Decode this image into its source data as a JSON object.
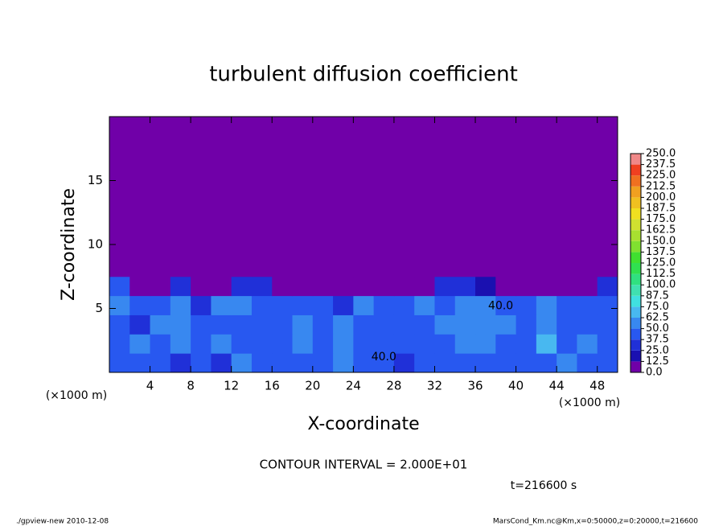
{
  "chart_data": {
    "type": "contour",
    "title": "turbulent diffusion coefficient",
    "x_label": "X-coordinate",
    "y_label": "Z-coordinate",
    "x_unit": "(×1000 m)",
    "y_unit": "(×1000 m)",
    "xlim": [
      0,
      50
    ],
    "ylim": [
      0,
      20
    ],
    "xticks": [
      4,
      8,
      12,
      16,
      20,
      24,
      28,
      32,
      36,
      40,
      44,
      48
    ],
    "yticks": [
      5,
      10,
      15
    ],
    "x_edges": [
      0,
      2,
      4,
      6,
      8,
      10,
      12,
      14,
      16,
      18,
      20,
      22,
      24,
      26,
      28,
      30,
      32,
      34,
      36,
      38,
      40,
      42,
      44,
      46,
      48,
      50
    ],
    "z_edges": [
      0,
      1.5,
      3,
      4.5,
      6,
      7.5,
      20
    ],
    "values": [
      [
        40,
        45,
        40,
        35,
        45,
        30,
        60,
        45,
        40,
        45,
        40,
        60,
        40,
        40,
        35,
        40,
        40,
        45,
        45,
        40,
        45,
        40,
        50,
        45,
        40
      ],
      [
        40,
        50,
        45,
        60,
        40,
        50,
        45,
        40,
        40,
        60,
        45,
        55,
        45,
        40,
        45,
        45,
        45,
        50,
        55,
        45,
        40,
        70,
        40,
        50,
        45
      ],
      [
        45,
        35,
        50,
        55,
        40,
        45,
        45,
        40,
        45,
        55,
        40,
        50,
        45,
        40,
        45,
        45,
        50,
        60,
        55,
        50,
        45,
        60,
        45,
        40,
        45
      ],
      [
        50,
        45,
        40,
        50,
        35,
        55,
        50,
        45,
        45,
        40,
        45,
        35,
        50,
        45,
        45,
        50,
        45,
        50,
        55,
        45,
        40,
        60,
        45,
        45,
        40
      ],
      [
        40,
        5,
        10,
        25,
        5,
        5,
        30,
        30,
        5,
        5,
        5,
        5,
        5,
        5,
        5,
        5,
        35,
        30,
        15,
        5,
        5,
        5,
        5,
        5,
        35
      ],
      [
        0,
        0,
        0,
        0,
        0,
        0,
        0,
        0,
        0,
        0,
        0,
        0,
        0,
        0,
        0,
        0,
        0,
        0,
        0,
        0,
        0,
        0,
        0,
        0,
        0
      ]
    ],
    "contour_labels": [
      {
        "text": "40.0",
        "x": 27,
        "z": 1.2
      },
      {
        "text": "40.0",
        "x": 38.5,
        "z": 5.2
      }
    ],
    "levels": [
      {
        "value": 0,
        "label": "0.0"
      },
      12.5,
      {
        "value": 25,
        "label": "25.0"
      },
      37.5,
      {
        "value": 50,
        "label": "50.0"
      },
      62.5,
      {
        "value": 75,
        "label": "75.0"
      },
      87.5,
      {
        "value": 100,
        "label": "100.0"
      },
      112.5,
      {
        "value": 125,
        "label": "125.0"
      },
      137.5,
      {
        "value": 150,
        "label": "150.0"
      },
      162.5,
      {
        "value": 175,
        "label": "175.0"
      },
      187.5,
      {
        "value": 200,
        "label": "200.0"
      },
      212.5,
      {
        "value": 225,
        "label": "225.0"
      },
      237.5,
      {
        "value": 250,
        "label": "250.0"
      }
    ],
    "colors": [
      "#7000a8",
      "#1a10b0",
      "#2030d8",
      "#2858f0",
      "#3888f0",
      "#48b8f0",
      "#40e0e0",
      "#40e0b0",
      "#30e080",
      "#30e050",
      "#40e030",
      "#80e030",
      "#a8e030",
      "#d0e030",
      "#f0e020",
      "#f0c020",
      "#f0a020",
      "#f07020",
      "#f04020",
      "#f08888"
    ],
    "contour_interval": "CONTOUR INTERVAL = 2.000E+01",
    "time_label": "t=216600 s",
    "footer_left": "./gpview-new   2010-12-08",
    "footer_right": "MarsCond_Km.nc@Km,x=0:50000,z=0:20000,t=216600"
  }
}
